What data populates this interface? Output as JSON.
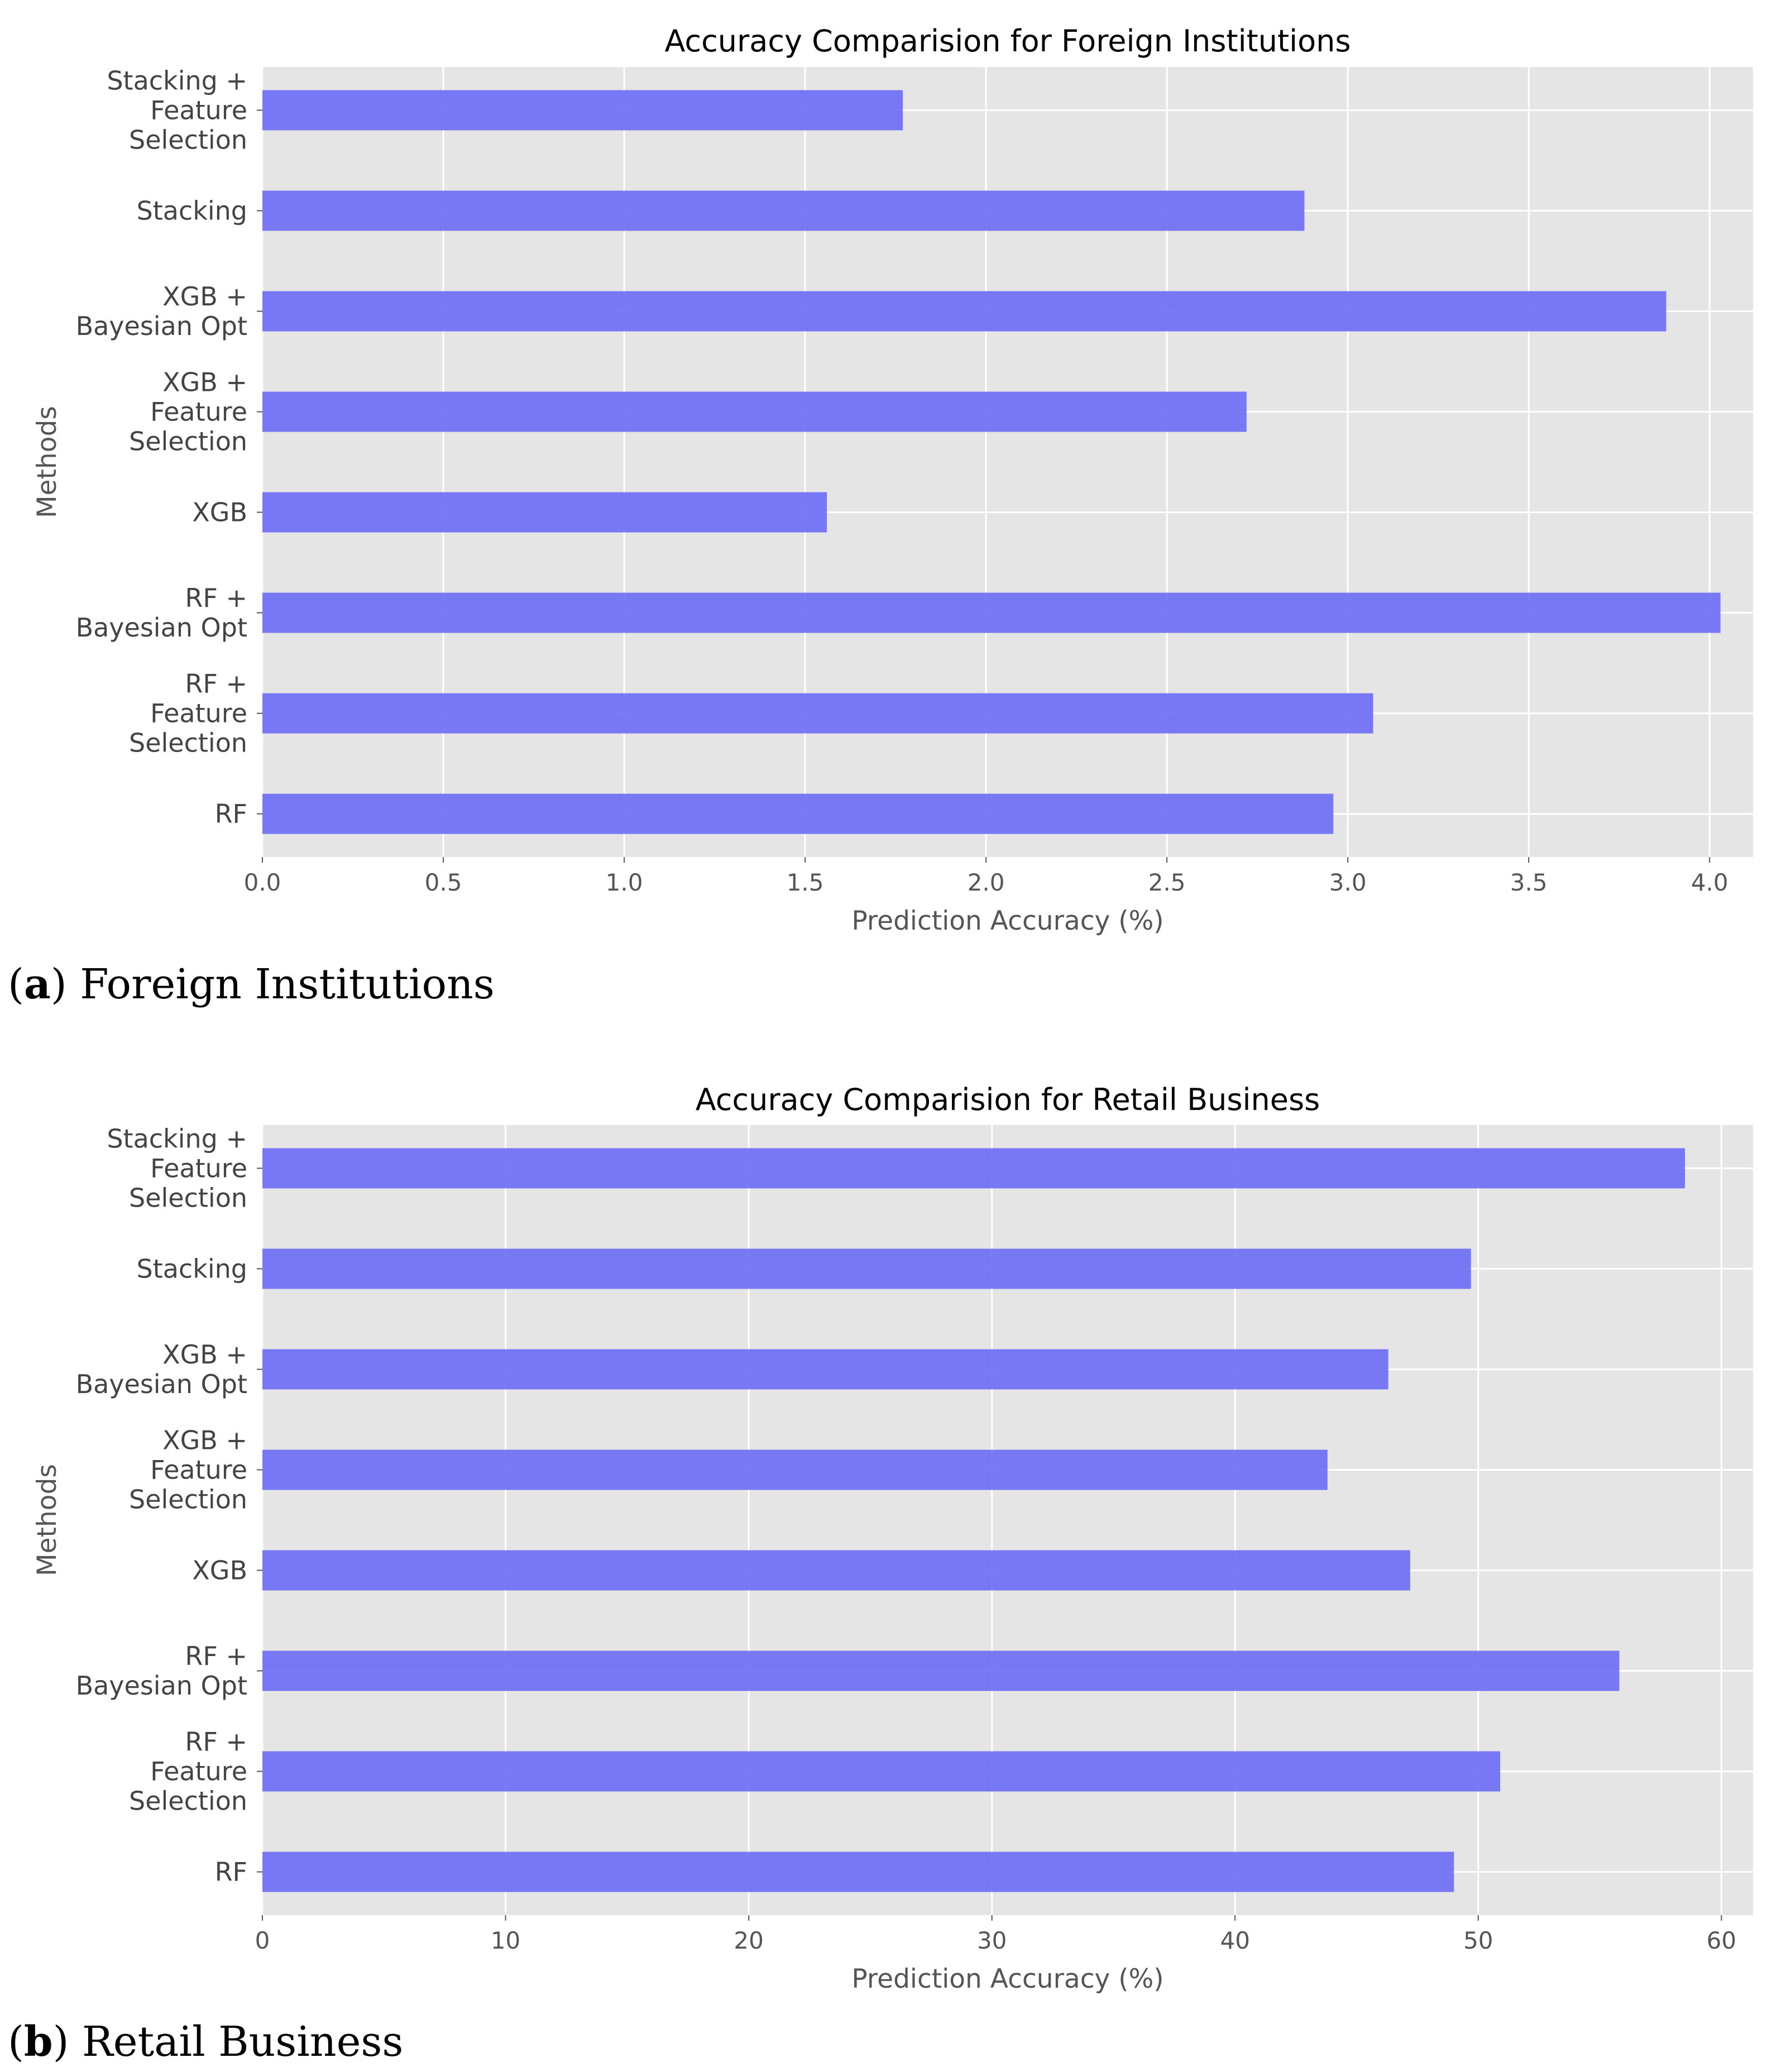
{
  "chart_data": [
    {
      "type": "bar",
      "orientation": "horizontal",
      "title": "Accuracy Comparision for Foreign Institutions",
      "xlabel": "Prediction Accuracy (%)",
      "ylabel": "Methods",
      "xlim": [
        0,
        4.12
      ],
      "xticks": [
        "0.0",
        "0.5",
        "1.0",
        "1.5",
        "2.0",
        "2.5",
        "3.0",
        "3.5",
        "4.0"
      ],
      "grid": true,
      "categories": [
        [
          "Stacking +",
          "Feature",
          "Selection"
        ],
        [
          "Stacking"
        ],
        [
          "XGB +",
          "Bayesian Opt"
        ],
        [
          "XGB +",
          "Feature",
          "Selection"
        ],
        [
          "XGB"
        ],
        [
          "RF +",
          "Bayesian Opt"
        ],
        [
          "RF +",
          "Feature",
          "Selection"
        ],
        [
          "RF"
        ]
      ],
      "values": [
        1.77,
        2.88,
        3.88,
        2.72,
        1.56,
        4.03,
        3.07,
        2.96
      ],
      "bar_color": "#6b6bf5",
      "caption_letter": "a",
      "caption_text": "Foreign Institutions"
    },
    {
      "type": "bar",
      "orientation": "horizontal",
      "title": "Accuracy Comparision for Retail Business",
      "xlabel": "Prediction Accuracy (%)",
      "ylabel": "Methods",
      "xlim": [
        0,
        61.3
      ],
      "xticks": [
        "0",
        "10",
        "20",
        "30",
        "40",
        "50",
        "60"
      ],
      "grid": true,
      "categories": [
        [
          "Stacking +",
          "Feature",
          "Selection"
        ],
        [
          "Stacking"
        ],
        [
          "XGB +",
          "Bayesian Opt"
        ],
        [
          "XGB +",
          "Feature",
          "Selection"
        ],
        [
          "XGB"
        ],
        [
          "RF +",
          "Bayesian Opt"
        ],
        [
          "RF +",
          "Feature",
          "Selection"
        ],
        [
          "RF"
        ]
      ],
      "values": [
        58.5,
        49.7,
        46.3,
        43.8,
        47.2,
        55.8,
        50.9,
        49.0
      ],
      "bar_color": "#6b6bf5",
      "caption_letter": "b",
      "caption_text": "Retail Business"
    }
  ]
}
